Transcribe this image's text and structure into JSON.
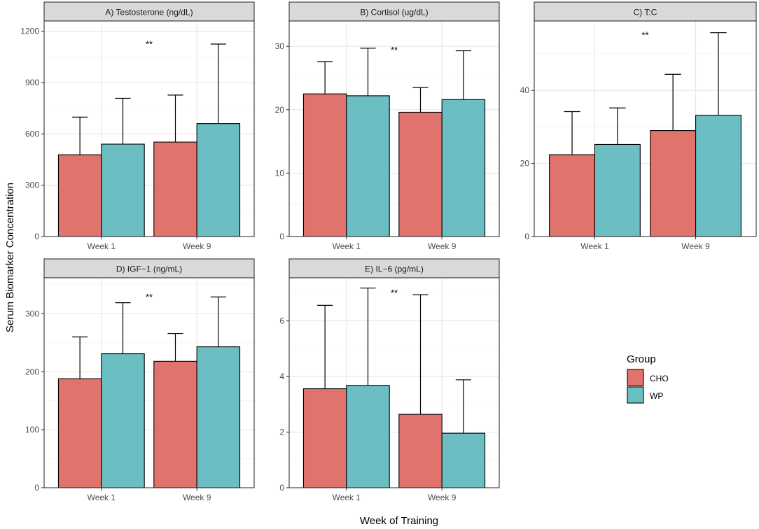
{
  "figure": {
    "ylabel": "Serum Biomarker Concentration",
    "xlabel": "Week of Training",
    "legend": {
      "title": "Group",
      "position": "right",
      "items": [
        {
          "label": "CHO",
          "color": "#E0736C"
        },
        {
          "label": "WP",
          "color": "#6BBFC3"
        }
      ]
    }
  },
  "chart_data": [
    {
      "type": "bar",
      "title": "A) Testosterone (ng/dL)",
      "categories": [
        "Week 1",
        "Week 9"
      ],
      "series": [
        {
          "name": "CHO",
          "values": [
            478,
            552
          ],
          "errors": [
            220,
            275
          ]
        },
        {
          "name": "WP",
          "values": [
            540,
            660
          ],
          "errors": [
            268,
            465
          ]
        }
      ],
      "ylim": [
        0,
        1260
      ],
      "yticks": [
        0,
        300,
        600,
        900,
        1200
      ],
      "ytick_labels": [
        "0",
        "300",
        "600",
        "900",
        "1200"
      ],
      "annotation": "**",
      "annotation_y": 1140
    },
    {
      "type": "bar",
      "title": "B) Cortisol (ug/dL)",
      "categories": [
        "Week 1",
        "Week 9"
      ],
      "series": [
        {
          "name": "CHO",
          "values": [
            22.5,
            19.6
          ],
          "errors": [
            5.1,
            3.9
          ]
        },
        {
          "name": "WP",
          "values": [
            22.2,
            21.6
          ],
          "errors": [
            7.5,
            7.7
          ]
        }
      ],
      "ylim": [
        0,
        34
      ],
      "yticks": [
        0,
        10,
        20,
        30
      ],
      "ytick_labels": [
        "0",
        "10",
        "20",
        "30"
      ],
      "annotation": "**",
      "annotation_y": 29.8
    },
    {
      "type": "bar",
      "title": "C) T:C",
      "categories": [
        "Week 1",
        "Week 9"
      ],
      "series": [
        {
          "name": "CHO",
          "values": [
            22.4,
            29.0
          ],
          "errors": [
            11.8,
            15.4
          ]
        },
        {
          "name": "WP",
          "values": [
            25.2,
            33.2
          ],
          "errors": [
            10.0,
            22.6
          ]
        }
      ],
      "ylim": [
        0,
        59
      ],
      "yticks": [
        0,
        20,
        40
      ],
      "ytick_labels": [
        "0",
        "20",
        "40"
      ],
      "annotation": "**",
      "annotation_y": 55.8
    },
    {
      "type": "bar",
      "title": "D) IGF−1 (ng/mL)",
      "categories": [
        "Week 1",
        "Week 9"
      ],
      "series": [
        {
          "name": "CHO",
          "values": [
            188,
            218
          ],
          "errors": [
            72,
            48
          ]
        },
        {
          "name": "WP",
          "values": [
            231,
            243
          ],
          "errors": [
            88,
            86
          ]
        }
      ],
      "ylim": [
        0,
        362
      ],
      "yticks": [
        0,
        100,
        200,
        300
      ],
      "ytick_labels": [
        "0",
        "100",
        "200",
        "300"
      ],
      "annotation": "**",
      "annotation_y": 333
    },
    {
      "type": "bar",
      "title": "E) IL−6 (pg/mL)",
      "categories": [
        "Week 1",
        "Week 9"
      ],
      "series": [
        {
          "name": "CHO",
          "values": [
            3.56,
            2.64
          ],
          "errors": [
            3.0,
            4.3
          ]
        },
        {
          "name": "WP",
          "values": [
            3.68,
            1.96
          ],
          "errors": [
            3.5,
            1.92
          ]
        }
      ],
      "ylim": [
        0,
        7.55
      ],
      "yticks": [
        0,
        2,
        4,
        6
      ],
      "ytick_labels": [
        "0",
        "2",
        "4",
        "6"
      ],
      "annotation": "**",
      "annotation_y": 7.1
    }
  ]
}
